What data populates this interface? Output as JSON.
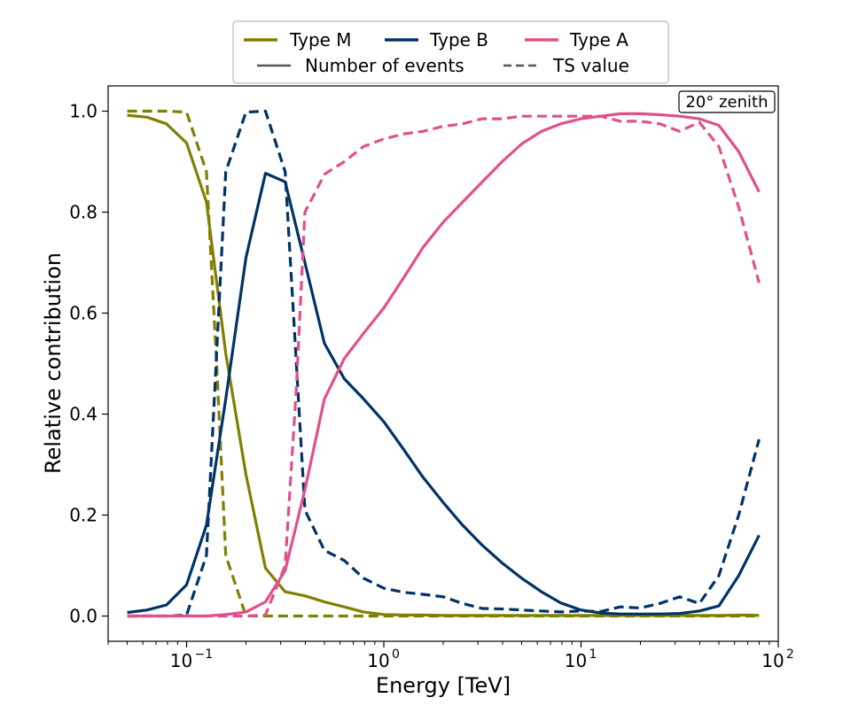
{
  "chart_data": {
    "type": "line",
    "xlabel": "Energy [TeV]",
    "ylabel": "Relative contribution",
    "xscale": "log",
    "xlim": [
      0.04,
      100
    ],
    "ylim": [
      -0.05,
      1.05
    ],
    "xticks": [
      {
        "value": 0.1,
        "base": "10",
        "exp": "−1"
      },
      {
        "value": 1,
        "base": "10",
        "exp": "0"
      },
      {
        "value": 10,
        "base": "10",
        "exp": "1"
      },
      {
        "value": 100,
        "base": "10",
        "exp": "2"
      }
    ],
    "yticks": [
      "0.0",
      "0.2",
      "0.4",
      "0.6",
      "0.8",
      "1.0"
    ],
    "annotation": "20° zenith",
    "legend": {
      "placement": "top-center, outside plot",
      "entries": [
        "Type M",
        "Type B",
        "Type A",
        "Number of events",
        "TS value"
      ]
    },
    "series": [
      {
        "name": "Type M",
        "metric": "Number of events",
        "style": "solid",
        "color": "#808000",
        "x": [
          0.05,
          0.063,
          0.079,
          0.1,
          0.126,
          0.158,
          0.2,
          0.251,
          0.316,
          0.398,
          0.5,
          0.63,
          0.79,
          1.0,
          1.26,
          1.58,
          2.0,
          3.16,
          5.0,
          10,
          20,
          50,
          70,
          80
        ],
        "y": [
          0.992,
          0.988,
          0.975,
          0.937,
          0.82,
          0.52,
          0.28,
          0.095,
          0.048,
          0.04,
          0.028,
          0.018,
          0.008,
          0.003,
          0.002,
          0.002,
          0.001,
          0.001,
          0.001,
          0.001,
          0.001,
          0.001,
          0.002,
          0.001
        ]
      },
      {
        "name": "Type M",
        "metric": "TS value",
        "style": "dashed",
        "color": "#808000",
        "x": [
          0.05,
          0.063,
          0.079,
          0.1,
          0.126,
          0.142,
          0.158,
          0.2,
          0.251,
          0.316,
          1.0,
          10,
          80
        ],
        "y": [
          1.0,
          1.0,
          1.0,
          0.998,
          0.88,
          0.5,
          0.12,
          0.0,
          0.0,
          0.0,
          0.0,
          0.0,
          0.0
        ]
      },
      {
        "name": "Type B",
        "metric": "Number of events",
        "style": "solid",
        "color": "#003366",
        "x": [
          0.05,
          0.063,
          0.079,
          0.1,
          0.126,
          0.158,
          0.2,
          0.251,
          0.316,
          0.398,
          0.5,
          0.63,
          0.79,
          1.0,
          1.26,
          1.58,
          2.0,
          2.51,
          3.16,
          3.98,
          5.0,
          6.3,
          7.9,
          10,
          12.6,
          15.8,
          20,
          25.1,
          31.6,
          39.8,
          50,
          63,
          80
        ],
        "y": [
          0.007,
          0.012,
          0.022,
          0.062,
          0.18,
          0.43,
          0.71,
          0.877,
          0.86,
          0.7,
          0.54,
          0.47,
          0.43,
          0.385,
          0.33,
          0.275,
          0.225,
          0.18,
          0.14,
          0.105,
          0.075,
          0.048,
          0.026,
          0.012,
          0.006,
          0.004,
          0.004,
          0.004,
          0.005,
          0.01,
          0.02,
          0.08,
          0.16
        ]
      },
      {
        "name": "Type B",
        "metric": "TS value",
        "style": "dashed",
        "color": "#003366",
        "x": [
          0.05,
          0.079,
          0.1,
          0.126,
          0.158,
          0.2,
          0.251,
          0.316,
          0.398,
          0.5,
          0.63,
          0.79,
          1.0,
          1.26,
          1.58,
          2.0,
          2.51,
          3.16,
          3.98,
          5.0,
          6.3,
          7.9,
          10,
          12.6,
          15.8,
          20,
          25.1,
          31.6,
          39.8,
          50,
          63,
          80
        ],
        "y": [
          0.0,
          0.0,
          0.002,
          0.12,
          0.88,
          0.998,
          1.0,
          0.88,
          0.21,
          0.13,
          0.11,
          0.075,
          0.055,
          0.047,
          0.043,
          0.038,
          0.025,
          0.015,
          0.014,
          0.012,
          0.01,
          0.008,
          0.01,
          0.009,
          0.018,
          0.016,
          0.025,
          0.038,
          0.025,
          0.08,
          0.2,
          0.35
        ]
      },
      {
        "name": "Type A",
        "metric": "Number of events",
        "style": "solid",
        "color": "#E0508C",
        "x": [
          0.05,
          0.079,
          0.1,
          0.126,
          0.158,
          0.2,
          0.251,
          0.316,
          0.398,
          0.5,
          0.63,
          0.79,
          1.0,
          1.26,
          1.58,
          2.0,
          2.51,
          3.16,
          3.98,
          5.0,
          6.3,
          7.9,
          10,
          12.6,
          15.8,
          20,
          25.1,
          31.6,
          39.8,
          50,
          63,
          80
        ],
        "y": [
          0.0,
          0.0,
          0.0,
          0.0,
          0.003,
          0.008,
          0.028,
          0.09,
          0.25,
          0.43,
          0.51,
          0.56,
          0.61,
          0.67,
          0.73,
          0.78,
          0.82,
          0.86,
          0.9,
          0.935,
          0.96,
          0.975,
          0.985,
          0.99,
          0.995,
          0.995,
          0.993,
          0.99,
          0.985,
          0.972,
          0.92,
          0.84
        ]
      },
      {
        "name": "Type A",
        "metric": "TS value",
        "style": "dashed",
        "color": "#E0508C",
        "x": [
          0.05,
          0.1,
          0.2,
          0.251,
          0.316,
          0.36,
          0.398,
          0.45,
          0.5,
          0.63,
          0.79,
          1.0,
          1.26,
          1.58,
          2.0,
          2.51,
          3.16,
          3.98,
          5.0,
          6.3,
          7.9,
          10,
          12.6,
          15.8,
          20,
          25.1,
          31.6,
          39.8,
          50,
          63,
          80
        ],
        "y": [
          0.0,
          0.0,
          0.0,
          0.002,
          0.1,
          0.45,
          0.8,
          0.84,
          0.875,
          0.9,
          0.93,
          0.945,
          0.955,
          0.96,
          0.97,
          0.975,
          0.985,
          0.985,
          0.99,
          0.99,
          0.99,
          0.99,
          0.99,
          0.98,
          0.98,
          0.975,
          0.96,
          0.978,
          0.93,
          0.81,
          0.66
        ]
      }
    ]
  }
}
